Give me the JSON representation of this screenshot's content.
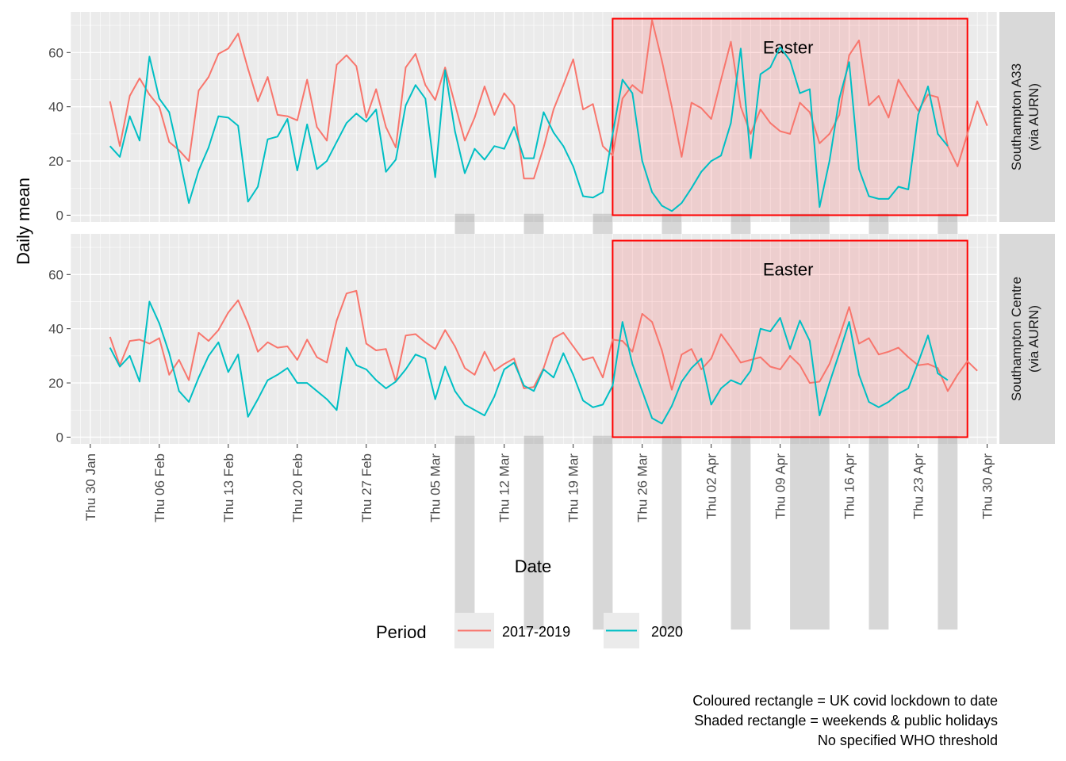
{
  "chart_data": {
    "type": "line",
    "ylabel": "Daily mean",
    "xlabel": "Date",
    "xlim": [
      "2020-01-28",
      "2020-05-01"
    ],
    "ylim": [
      -2.5,
      75
    ],
    "yticks": [
      0,
      20,
      40,
      60
    ],
    "xtick_dates": [
      "2020-01-30",
      "2020-02-06",
      "2020-02-13",
      "2020-02-20",
      "2020-02-27",
      "2020-03-05",
      "2020-03-12",
      "2020-03-19",
      "2020-03-26",
      "2020-04-02",
      "2020-04-09",
      "2020-04-16",
      "2020-04-23",
      "2020-04-30"
    ],
    "xtick_labels": [
      "Thu 30 Jan",
      "Thu 06 Feb",
      "Thu 13 Feb",
      "Thu 20 Feb",
      "Thu 27 Feb",
      "Thu 05 Mar",
      "Thu 12 Mar",
      "Thu 19 Mar",
      "Thu 26 Mar",
      "Thu 02 Apr",
      "Thu 09 Apr",
      "Thu 16 Apr",
      "Thu 23 Apr",
      "Thu 30 Apr"
    ],
    "series_colors": {
      "2017-2019": "#F8766D",
      "2020": "#00BFC4"
    },
    "legend": {
      "title": "Period",
      "placement": "bottom",
      "entries": [
        "2017-2019",
        "2020"
      ]
    },
    "lockdown": {
      "start": "2020-03-23",
      "end": "2020-04-28",
      "color": "#FF0000"
    },
    "weekend_shading": [
      [
        "2020-03-07",
        "2020-03-09"
      ],
      [
        "2020-03-14",
        "2020-03-16"
      ],
      [
        "2020-03-21",
        "2020-03-23"
      ],
      [
        "2020-03-28",
        "2020-03-30"
      ],
      [
        "2020-04-04",
        "2020-04-06"
      ],
      [
        "2020-04-10",
        "2020-04-14"
      ],
      [
        "2020-04-18",
        "2020-04-20"
      ],
      [
        "2020-04-25",
        "2020-04-27"
      ]
    ],
    "annotation": {
      "text": "Easter",
      "date": "2020-04-09"
    },
    "start_date": "2020-02-01",
    "panels": [
      {
        "strip": [
          "Southampton A33",
          "(via AURN)"
        ],
        "series": [
          {
            "name": "2017-2019",
            "values": [
              42,
              25.5,
              44,
              50.5,
              44.5,
              40,
              27,
              24,
              20,
              46,
              51,
              59.5,
              61.5,
              67,
              54,
              42,
              51,
              37,
              36.5,
              35,
              50,
              32.5,
              27.5,
              55.5,
              59,
              55,
              36,
              46.5,
              32.5,
              25,
              54.5,
              59.5,
              48,
              42.5,
              54.5,
              41,
              27.5,
              36,
              47.5,
              37,
              45,
              40.5,
              13.5,
              13.5,
              25,
              39,
              48,
              57.5,
              39,
              41,
              25.5,
              22,
              43,
              48,
              45,
              72,
              57,
              40,
              21.5,
              41.5,
              39.5,
              35.5,
              50,
              64,
              40,
              30,
              39,
              34,
              31,
              30,
              41.5,
              38,
              26.5,
              30,
              37,
              59,
              64.5,
              40.5,
              44,
              36,
              50,
              44,
              38.5,
              44.5,
              43.5,
              25.5,
              18,
              30,
              42,
              33
            ]
          },
          {
            "name": "2020",
            "values": [
              25.5,
              21.5,
              36.5,
              27.5,
              58.5,
              43,
              38,
              22,
              4.5,
              16.5,
              25,
              36.5,
              36,
              33,
              5,
              10.5,
              28,
              29,
              35.5,
              16.5,
              33.5,
              17,
              20,
              27,
              34,
              37.5,
              34.5,
              39,
              16,
              20.5,
              40.5,
              48,
              43,
              14,
              53.5,
              31,
              15.5,
              24.5,
              20.5,
              25.5,
              24.5,
              32.5,
              21,
              21,
              38,
              30.5,
              25.5,
              18,
              7,
              6.5,
              8.5,
              30,
              50,
              45,
              20,
              8.5,
              3.5,
              1.5,
              4.5,
              10,
              16,
              20,
              22,
              34,
              61.5,
              21,
              52,
              54.5,
              62,
              57,
              45,
              46.5,
              3,
              20,
              43,
              56.5,
              17,
              7,
              6,
              6,
              10.5,
              9.5,
              37,
              47.5,
              30,
              25.5
            ]
          }
        ]
      },
      {
        "strip": [
          "Southampton Centre",
          "(via AURN)"
        ],
        "series": [
          {
            "name": "2017-2019",
            "values": [
              37,
              26.5,
              35.5,
              36,
              34.5,
              36.5,
              23,
              28.5,
              21,
              38.5,
              35.5,
              39.5,
              46,
              50.5,
              42,
              31.5,
              35,
              33,
              33.5,
              28.5,
              36,
              29.5,
              27.5,
              43,
              53,
              54,
              34.5,
              32,
              32.5,
              20.5,
              37.5,
              38,
              35,
              32.5,
              39.5,
              33.5,
              25.5,
              23,
              31.5,
              24.5,
              27,
              29,
              18,
              18.5,
              25.5,
              36.5,
              38.5,
              33.5,
              28.5,
              29.5,
              22,
              36,
              35.5,
              31.5,
              45.5,
              42.5,
              32,
              17.5,
              30.5,
              32.5,
              25,
              29,
              38,
              33,
              27.5,
              28.5,
              29.5,
              26,
              25,
              30,
              26.5,
              20,
              20.5,
              27,
              37,
              48,
              34.5,
              36.5,
              30.5,
              31.5,
              33,
              29.5,
              26.5,
              27,
              25.5,
              17,
              23,
              28,
              24.5
            ]
          },
          {
            "name": "2020",
            "values": [
              33,
              26,
              30,
              20.5,
              50,
              42,
              31,
              17,
              13,
              22,
              30,
              35,
              24,
              30.5,
              7.5,
              14,
              21,
              23,
              25.5,
              20,
              20,
              17,
              14,
              10,
              33,
              26.5,
              25,
              21,
              18,
              20.5,
              25,
              30.5,
              29,
              14,
              26,
              17,
              12,
              10,
              8,
              15,
              25,
              27.5,
              19,
              17,
              25,
              22,
              31,
              23,
              13.5,
              11,
              12,
              19,
              42.5,
              27,
              17,
              7,
              5,
              11.5,
              20.5,
              25.5,
              29,
              12,
              18,
              21,
              19.5,
              24.5,
              40,
              39,
              44,
              32.5,
              43,
              35.5,
              8,
              20,
              31,
              42.5,
              23,
              13,
              11,
              13,
              16,
              18,
              27.5,
              37.5,
              23.5,
              21
            ]
          }
        ]
      }
    ]
  },
  "axis": {
    "ylabel": "Daily mean",
    "xlabel": "Date"
  },
  "legend": {
    "title": "Period",
    "items": [
      "2017-2019",
      "2020"
    ]
  },
  "caption": [
    "Coloured rectangle = UK covid lockdown to date",
    "Shaded rectangle = weekends & public holidays",
    "No specified WHO threshold"
  ]
}
